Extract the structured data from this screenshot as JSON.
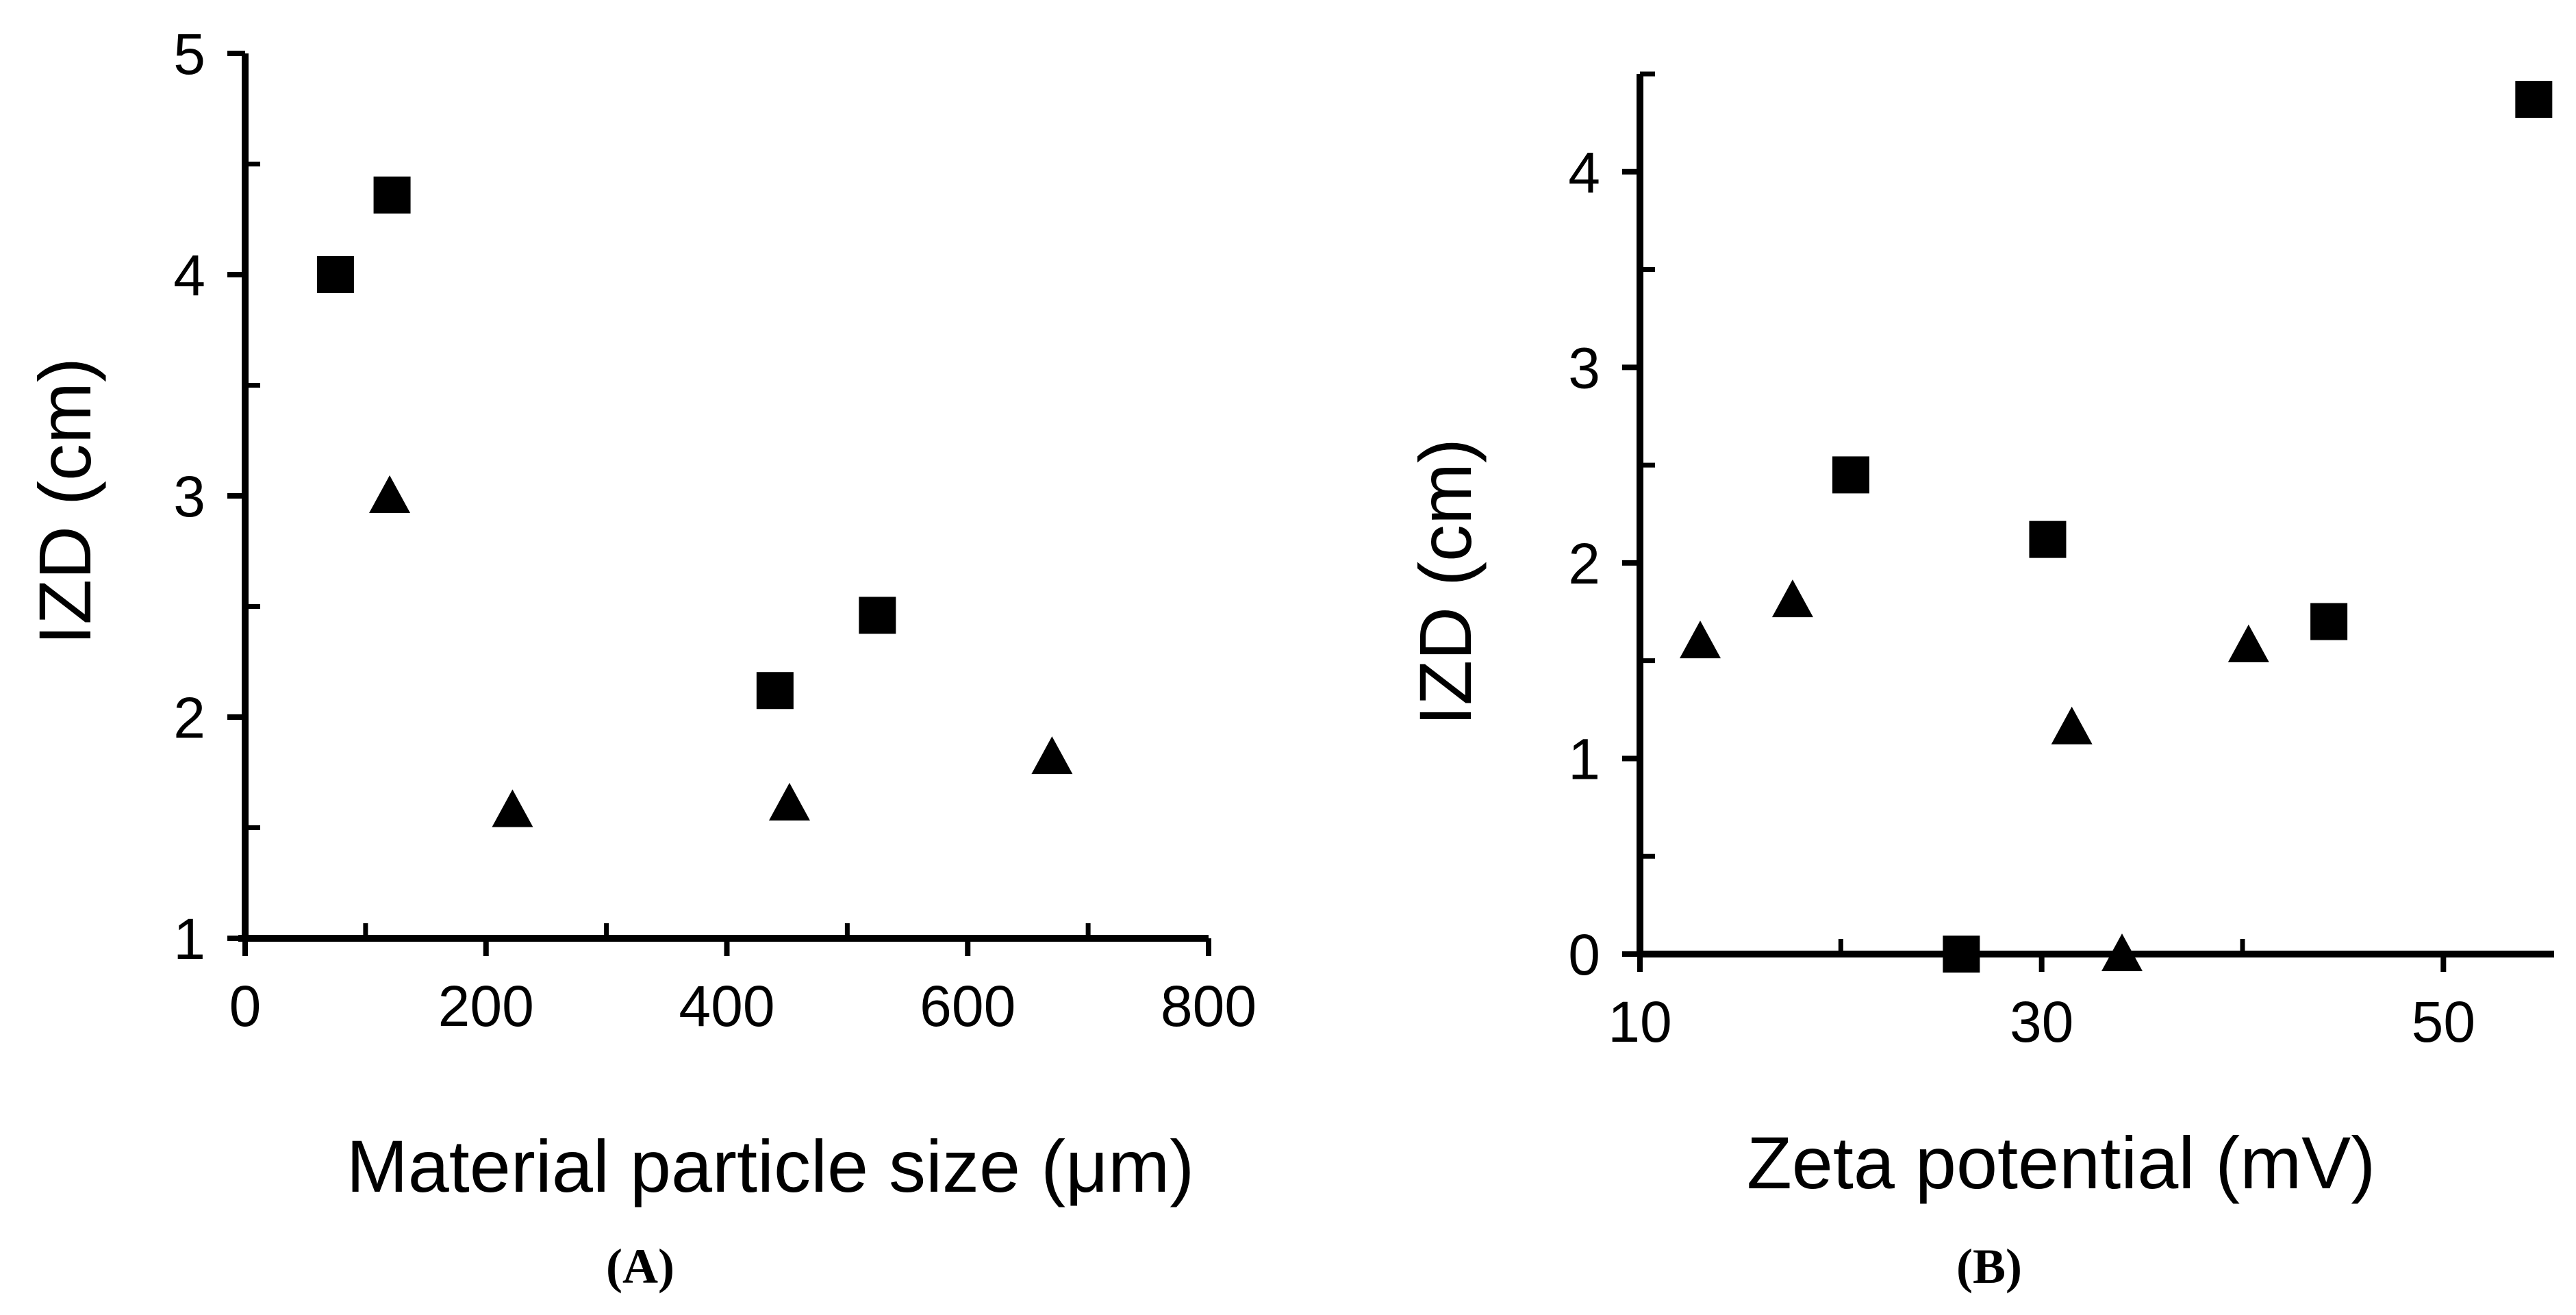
{
  "chart_data": [
    {
      "type": "scatter",
      "panel_label": "(A)",
      "xlabel": "Material particle size (μm)",
      "ylabel": "IZD (cm)",
      "xlim": [
        0,
        800
      ],
      "ylim": [
        1,
        5
      ],
      "x_ticks": [
        0,
        200,
        400,
        600,
        800
      ],
      "y_ticks": [
        1,
        2,
        3,
        4,
        5
      ],
      "series": [
        {
          "name": "squares",
          "marker": "square",
          "points": [
            [
              75,
              4.0
            ],
            [
              122,
              4.36
            ],
            [
              440,
              2.12
            ],
            [
              525,
              2.46
            ]
          ]
        },
        {
          "name": "triangles",
          "marker": "triangle",
          "points": [
            [
              120,
              3.0
            ],
            [
              222,
              1.58
            ],
            [
              452,
              1.61
            ],
            [
              670,
              1.82
            ]
          ]
        }
      ]
    },
    {
      "type": "scatter",
      "panel_label": "(B)",
      "xlabel": "Zeta potential (mV)",
      "ylabel": "IZD (cm)",
      "xlim": [
        10,
        55
      ],
      "ylim": [
        0,
        4.5
      ],
      "x_ticks": [
        10,
        30,
        50
      ],
      "y_ticks": [
        0,
        1,
        2,
        3,
        4
      ],
      "series": [
        {
          "name": "squares",
          "marker": "square",
          "points": [
            [
              26,
              0.0
            ],
            [
              20.5,
              2.45
            ],
            [
              30.3,
              2.12
            ],
            [
              44.3,
              1.7
            ],
            [
              54.5,
              4.37
            ]
          ]
        },
        {
          "name": "triangles",
          "marker": "triangle",
          "points": [
            [
              13,
              1.6
            ],
            [
              17.6,
              1.81
            ],
            [
              31.5,
              1.16
            ],
            [
              34,
              0.0
            ],
            [
              40.3,
              1.58
            ]
          ]
        }
      ]
    }
  ]
}
